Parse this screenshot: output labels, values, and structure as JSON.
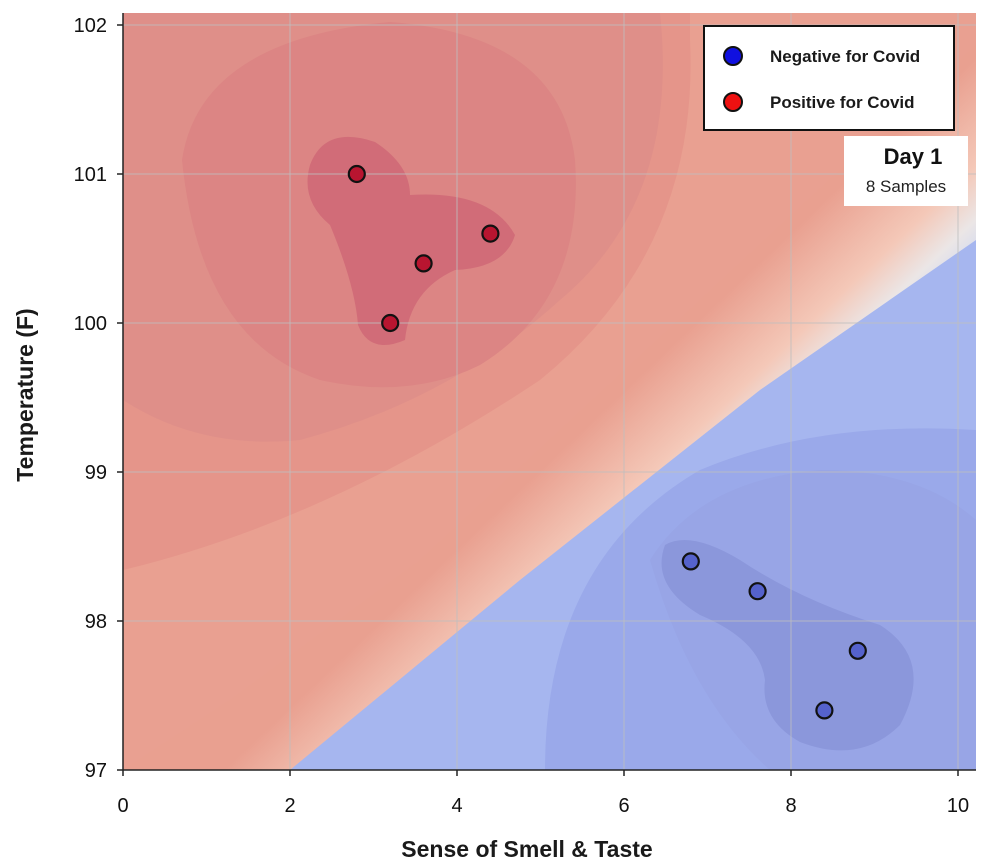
{
  "chart_data": {
    "type": "scatter",
    "xlabel": "Sense of Smell & Taste",
    "ylabel": "Temperature (F)",
    "xlim": [
      0,
      10.2
    ],
    "ylim": [
      97,
      102.1
    ],
    "x_ticks": [
      0,
      2,
      4,
      6,
      8,
      10
    ],
    "y_ticks": [
      97,
      98,
      99,
      100,
      101,
      102
    ],
    "grid": true,
    "background": "decision-boundary contour shading: red for Positive, blue for Negative",
    "legend": {
      "position": "top-right",
      "entries": [
        {
          "label": "Negative for Covid",
          "color": "#1010e0"
        },
        {
          "label": "Positive for Covid",
          "color": "#ee1111"
        }
      ]
    },
    "annotation": {
      "title": "Day 1",
      "subtitle": "8 Samples"
    },
    "series": [
      {
        "name": "Positive for Covid",
        "color": "#b81530",
        "points": [
          [
            2.8,
            101.0
          ],
          [
            3.6,
            100.4
          ],
          [
            4.4,
            100.6
          ],
          [
            3.2,
            100.0
          ]
        ]
      },
      {
        "name": "Negative for Covid",
        "color": "#5562cc",
        "points": [
          [
            6.8,
            98.4
          ],
          [
            7.6,
            98.2
          ],
          [
            8.8,
            97.8
          ],
          [
            8.4,
            97.4
          ]
        ]
      }
    ]
  }
}
